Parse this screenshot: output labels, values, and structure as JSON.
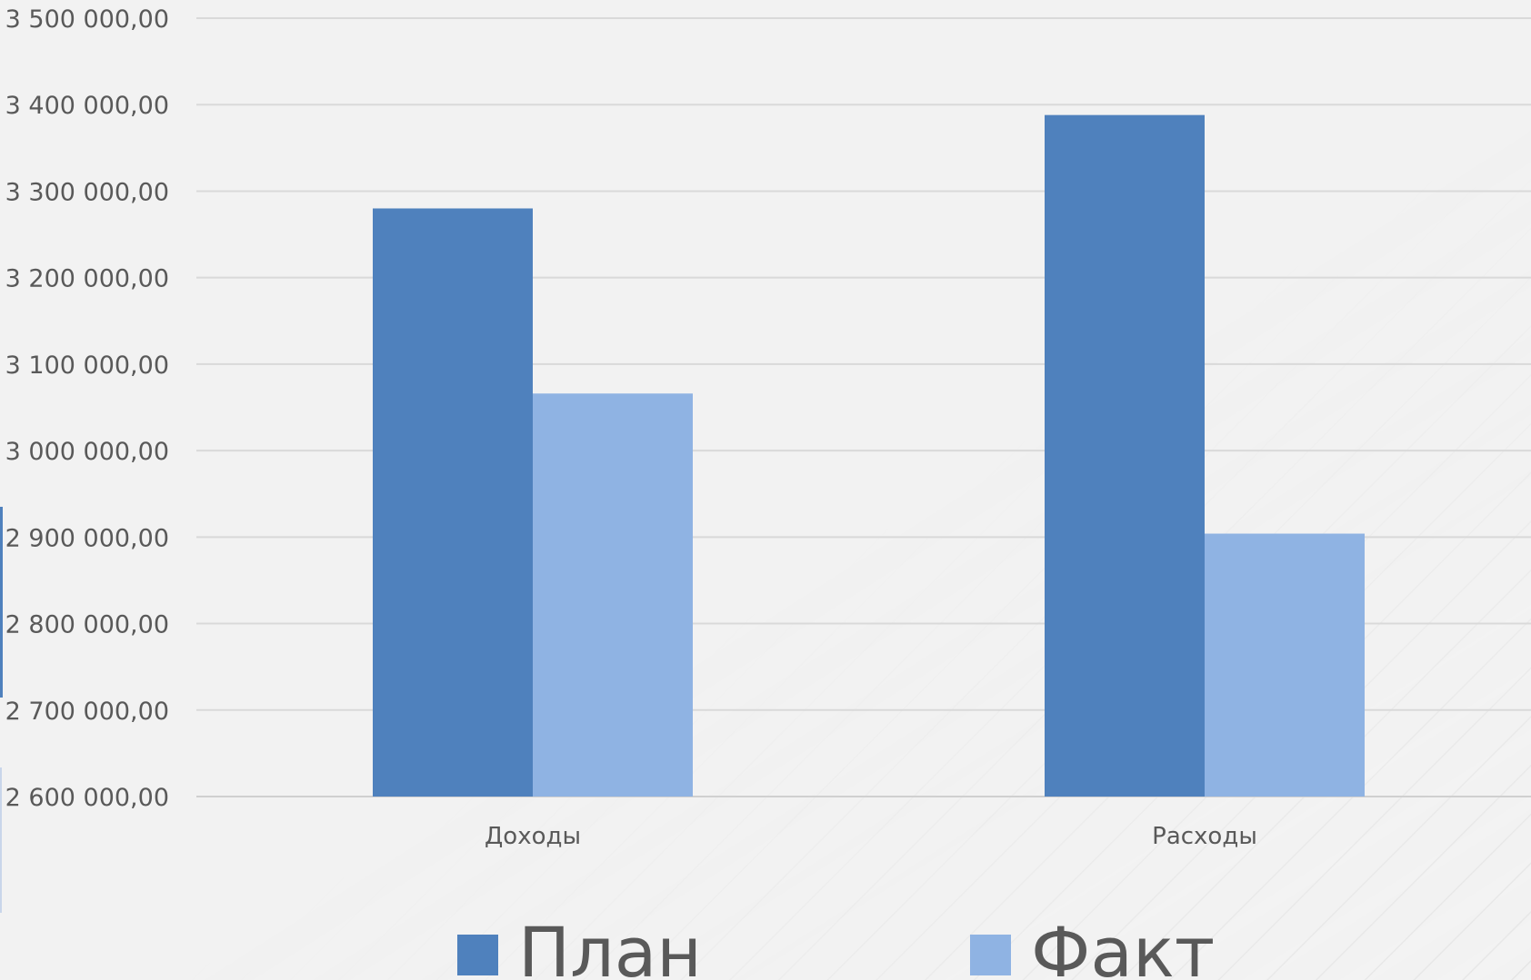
{
  "chart_data": {
    "type": "bar",
    "categories": [
      "Доходы",
      "Расходы"
    ],
    "series": [
      {
        "name": "План",
        "values": [
          3280000,
          3388000
        ],
        "color": "#4f81bd"
      },
      {
        "name": "Факт",
        "values": [
          3066000,
          2904000
        ],
        "color": "#8fb3e3"
      }
    ],
    "ylim": [
      2600000,
      3500000
    ],
    "yticks": [
      "2 600 000,00",
      "2 700 000,00",
      "2 800 000,00",
      "2 900 000,00",
      "3 000 000,00",
      "3 100 000,00",
      "3 200 000,00",
      "3 300 000,00",
      "3 400 000,00",
      "3 500 000,00"
    ],
    "ytick_values": [
      2600000,
      2700000,
      2800000,
      2900000,
      3000000,
      3100000,
      3200000,
      3300000,
      3400000,
      3500000
    ],
    "grid": true,
    "legend_position": "bottom",
    "title": "",
    "xlabel": "",
    "ylabel": ""
  }
}
